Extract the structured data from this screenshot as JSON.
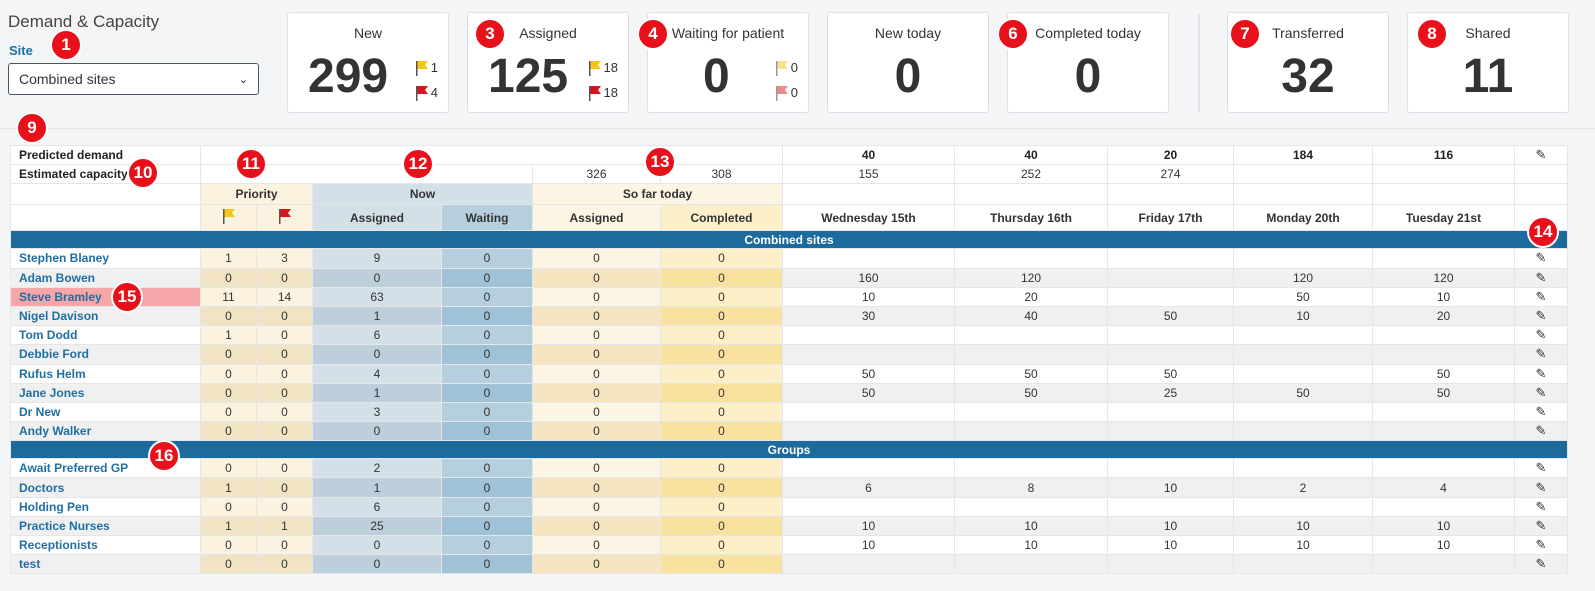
{
  "header": {
    "title": "Demand & Capacity",
    "site_label": "Site",
    "site_value": "Combined sites"
  },
  "cards": [
    {
      "title": "New",
      "value": "299",
      "yellow": "1",
      "red": "4"
    },
    {
      "title": "Assigned",
      "value": "125",
      "yellow": "18",
      "red": "18"
    },
    {
      "title": "Waiting for patient",
      "value": "0",
      "yellow": "0",
      "red": "0"
    },
    {
      "title": "New today",
      "value": "0"
    },
    {
      "title": "Completed today",
      "value": "0"
    },
    {
      "title": "Transferred",
      "value": "32"
    },
    {
      "title": "Shared",
      "value": "11"
    }
  ],
  "colors": {
    "accent": "#1d6a9c",
    "marker": "#e8111b",
    "flag_yellow": "#f5c518",
    "flag_red": "#d9151b",
    "highlight": "#f6a6a6"
  },
  "markers": [
    "1",
    "3",
    "4",
    "6",
    "7",
    "8",
    "9",
    "10",
    "11",
    "12",
    "13",
    "14",
    "15",
    "16"
  ],
  "table": {
    "predicted_label": "Predicted demand",
    "predicted": [
      "40",
      "40",
      "20",
      "184",
      "116"
    ],
    "capacity_label": "Estimated capacity",
    "capacity_so_far": [
      "326",
      "308"
    ],
    "capacity": [
      "155",
      "252",
      "274"
    ],
    "group_priority": "Priority",
    "group_now": "Now",
    "group_sofar": "So far today",
    "col_assigned": "Assigned",
    "col_waiting": "Waiting",
    "col_completed": "Completed",
    "days": [
      "Wednesday 15th",
      "Thursday 16th",
      "Friday 17th",
      "Monday 20th",
      "Tuesday 21st"
    ],
    "section1": "Combined sites",
    "section2": "Groups",
    "people": [
      {
        "name": "Stephen Blaney",
        "v": [
          "1",
          "3",
          "9",
          "0",
          "0",
          "0",
          "",
          "",
          "",
          "",
          ""
        ]
      },
      {
        "name": "Adam Bowen",
        "v": [
          "0",
          "0",
          "0",
          "0",
          "0",
          "0",
          "160",
          "120",
          "",
          "120",
          "120"
        ]
      },
      {
        "name": "Steve Bramley",
        "v": [
          "11",
          "14",
          "63",
          "0",
          "0",
          "0",
          "10",
          "20",
          "",
          "50",
          "10"
        ]
      },
      {
        "name": "Nigel Davison",
        "v": [
          "0",
          "0",
          "1",
          "0",
          "0",
          "0",
          "30",
          "40",
          "50",
          "10",
          "20"
        ]
      },
      {
        "name": "Tom Dodd",
        "v": [
          "1",
          "0",
          "6",
          "0",
          "0",
          "0",
          "",
          "",
          "",
          "",
          ""
        ]
      },
      {
        "name": "Debbie Ford",
        "v": [
          "0",
          "0",
          "0",
          "0",
          "0",
          "0",
          "",
          "",
          "",
          "",
          ""
        ]
      },
      {
        "name": "Rufus Helm",
        "v": [
          "0",
          "0",
          "4",
          "0",
          "0",
          "0",
          "50",
          "50",
          "50",
          "",
          "50"
        ]
      },
      {
        "name": "Jane Jones",
        "v": [
          "0",
          "0",
          "1",
          "0",
          "0",
          "0",
          "50",
          "50",
          "25",
          "50",
          "50"
        ]
      },
      {
        "name": "Dr New",
        "v": [
          "0",
          "0",
          "3",
          "0",
          "0",
          "0",
          "",
          "",
          "",
          "",
          ""
        ]
      },
      {
        "name": "Andy Walker",
        "v": [
          "0",
          "0",
          "0",
          "0",
          "0",
          "0",
          "",
          "",
          "",
          "",
          ""
        ]
      }
    ],
    "groups": [
      {
        "name": "Await Preferred GP",
        "v": [
          "0",
          "0",
          "2",
          "0",
          "0",
          "0",
          "",
          "",
          "",
          "",
          ""
        ]
      },
      {
        "name": "Doctors",
        "v": [
          "1",
          "0",
          "1",
          "0",
          "0",
          "0",
          "6",
          "8",
          "10",
          "2",
          "4"
        ]
      },
      {
        "name": "Holding Pen",
        "v": [
          "0",
          "0",
          "6",
          "0",
          "0",
          "0",
          "",
          "",
          "",
          "",
          ""
        ]
      },
      {
        "name": "Practice Nurses",
        "v": [
          "1",
          "1",
          "25",
          "0",
          "0",
          "0",
          "10",
          "10",
          "10",
          "10",
          "10"
        ]
      },
      {
        "name": "Receptionists",
        "v": [
          "0",
          "0",
          "0",
          "0",
          "0",
          "0",
          "10",
          "10",
          "10",
          "10",
          "10"
        ]
      },
      {
        "name": "test",
        "v": [
          "0",
          "0",
          "0",
          "0",
          "0",
          "0",
          "",
          "",
          "",
          "",
          ""
        ]
      }
    ],
    "edit_icon": "pencil-icon"
  }
}
